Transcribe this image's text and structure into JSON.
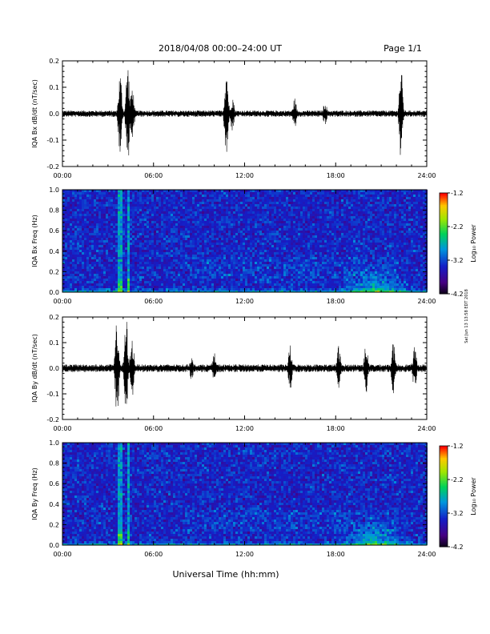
{
  "header": {
    "title": "2018/04/08   00:00–24:00 UT",
    "page": "Page 1/1"
  },
  "xlabel_common": "Universal Time (hh:mm)",
  "side_note": "Sat Jun 13 13:58 EDT 2018",
  "colorbar": {
    "title": "Log₁₀ Power",
    "ticks": [
      "-1.2",
      "-2.2",
      "-3.2",
      "-4.2"
    ],
    "range": [
      -4.2,
      -1.2
    ]
  },
  "chart_data": [
    {
      "type": "line",
      "ylabel": "IQA Bx dB/dt (nT/sec)",
      "xlim": [
        0,
        24
      ],
      "ylim": [
        -0.2,
        0.2
      ],
      "xticks": [
        "00:00",
        "06:00",
        "12:00",
        "18:00",
        "24:00"
      ],
      "yticks": [
        "0.2",
        "0.1",
        "0.0",
        "-0.1",
        "-0.2"
      ],
      "baseline_amplitude": 0.012,
      "bursts": [
        {
          "t": 3.8,
          "amp": 0.16
        },
        {
          "t": 4.3,
          "amp": 0.2
        },
        {
          "t": 4.6,
          "amp": 0.11
        },
        {
          "t": 10.8,
          "amp": 0.19
        },
        {
          "t": 11.2,
          "amp": 0.07
        },
        {
          "t": 15.3,
          "amp": 0.06
        },
        {
          "t": 17.3,
          "amp": 0.05
        },
        {
          "t": 22.3,
          "amp": 0.18
        }
      ]
    },
    {
      "type": "heatmap",
      "ylabel": "IQA Bx Freq (Hz)",
      "xlim": [
        0,
        24
      ],
      "ylim": [
        0.0,
        1.0
      ],
      "xticks": [
        "00:00",
        "06:00",
        "12:00",
        "18:00",
        "24:00"
      ],
      "yticks": [
        "1.0",
        "0.8",
        "0.6",
        "0.4",
        "0.2",
        "0.0"
      ],
      "zlabel": "Log₁₀ Power",
      "zlim": [
        -4.2,
        -1.2
      ],
      "features": [
        {
          "t": 3.7,
          "note": "vertical broadband line"
        },
        {
          "t": 4.3,
          "note": "vertical broadband line"
        },
        {
          "t": 20.5,
          "note": "low-frequency emission 0.0-0.2 Hz"
        }
      ]
    },
    {
      "type": "line",
      "ylabel": "IQA By dB/dt (nT/sec)",
      "xlim": [
        0,
        24
      ],
      "ylim": [
        -0.2,
        0.2
      ],
      "xticks": [
        "00:00",
        "06:00",
        "12:00",
        "18:00",
        "24:00"
      ],
      "yticks": [
        "0.2",
        "0.1",
        "0.0",
        "-0.1",
        "-0.2"
      ],
      "baseline_amplitude": 0.015,
      "bursts": [
        {
          "t": 3.6,
          "amp": 0.2
        },
        {
          "t": 4.2,
          "amp": 0.2
        },
        {
          "t": 4.6,
          "amp": 0.12
        },
        {
          "t": 8.5,
          "amp": 0.05
        },
        {
          "t": 10.0,
          "amp": 0.06
        },
        {
          "t": 15.0,
          "amp": 0.09
        },
        {
          "t": 18.2,
          "amp": 0.09
        },
        {
          "t": 20.0,
          "amp": 0.1
        },
        {
          "t": 21.8,
          "amp": 0.1
        },
        {
          "t": 23.2,
          "amp": 0.09
        }
      ]
    },
    {
      "type": "heatmap",
      "ylabel": "IQA By Freq (Hz)",
      "xlim": [
        0,
        24
      ],
      "ylim": [
        0.0,
        1.0
      ],
      "xticks": [
        "00:00",
        "06:00",
        "12:00",
        "18:00",
        "24:00"
      ],
      "yticks": [
        "1.0",
        "0.8",
        "0.6",
        "0.4",
        "0.2",
        "0.0"
      ],
      "zlabel": "Log₁₀ Power",
      "zlim": [
        -4.2,
        -1.2
      ],
      "features": [
        {
          "t": 3.7,
          "note": "vertical broadband line"
        },
        {
          "t": 4.3,
          "note": "vertical broadband line"
        },
        {
          "t": 20.5,
          "note": "low-frequency emission 0.0-0.3 Hz"
        }
      ]
    }
  ]
}
